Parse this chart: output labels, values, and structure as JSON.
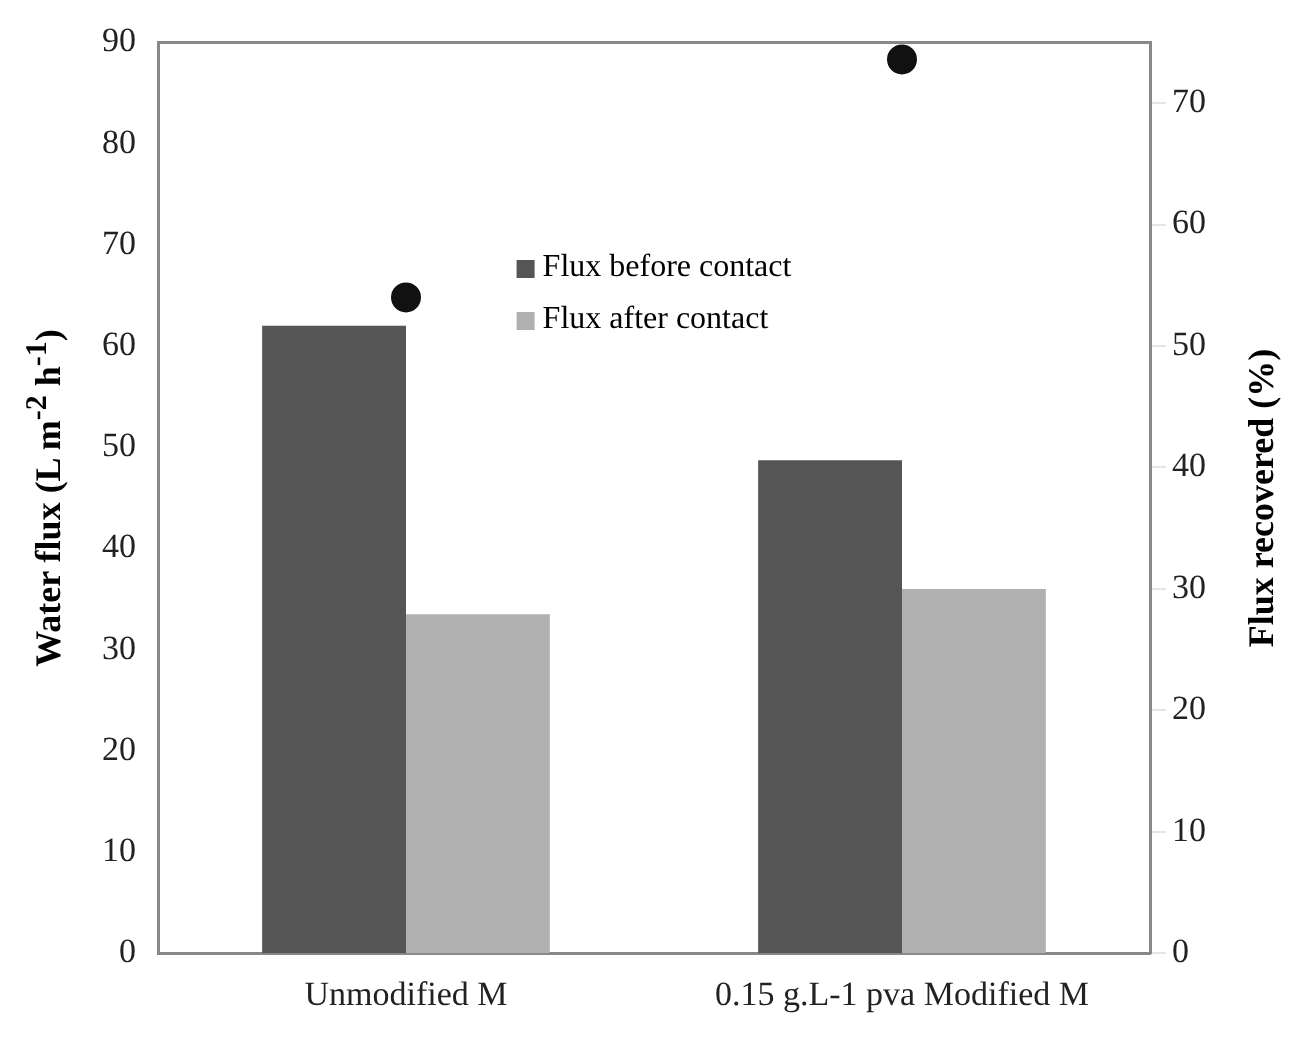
{
  "chart_data": {
    "type": "bar",
    "xlabel": null,
    "ylabel": "Water flux (L m$^{-2}$ h$^{-1}$)",
    "y2label": "Flux recovered (%)",
    "categories": [
      "Unmodified M",
      "0.15 g.L-1 pva Modified M"
    ],
    "series": [
      {
        "name": "Flux before contact",
        "color": "#555555",
        "values": [
          62,
          48.7
        ]
      },
      {
        "name": "Flux after contact",
        "color": "#b0b0b0",
        "values": [
          33.5,
          36
        ]
      },
      {
        "type": "scatter",
        "axis": "y2",
        "color": "#111111",
        "marker": "circle",
        "values": [
          54,
          73.6
        ]
      }
    ],
    "ylim": [
      0,
      90
    ],
    "yticks": [
      0,
      10,
      20,
      30,
      40,
      50,
      60,
      70,
      80,
      90
    ],
    "y2lim": [
      0,
      75
    ],
    "y2ticks": [
      0,
      10,
      20,
      30,
      40,
      50,
      60,
      70
    ],
    "grid": false,
    "legend": "top"
  }
}
